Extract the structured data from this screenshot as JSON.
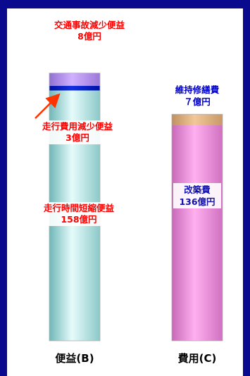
{
  "chart_data": {
    "type": "bar",
    "categories": [
      "便益(B)",
      "費用(C)"
    ],
    "unit": "億円",
    "stacks": [
      {
        "category": "便益(B)",
        "segments": [
          {
            "name": "走行時間短縮便益",
            "value": 158,
            "value_label": "158億円",
            "color": "#bde6e6"
          },
          {
            "name": "走行費用減少便益",
            "value": 3,
            "value_label": "3億円",
            "color": "#0018b8"
          },
          {
            "name": "交通事故減少便益",
            "value": 8,
            "value_label": "8億円",
            "color": "#b58ce8"
          }
        ]
      },
      {
        "category": "費用(C)",
        "segments": [
          {
            "name": "改築費",
            "value": 136,
            "value_label": "136億円",
            "color": "#e67ed4"
          },
          {
            "name": "維持修繕費",
            "value": 7,
            "value_label": "７億円",
            "color": "#d4a87a"
          }
        ]
      }
    ],
    "colors": {
      "frame": "#0a0a8e",
      "benefit_label": "#ff0000",
      "cost_label": "#0000cc",
      "cost_inner_label": "#1010b0",
      "arrow": "#ff3300"
    },
    "labels": {
      "accident": {
        "name": "交通事故減少便益",
        "value": "8億円"
      },
      "running_cost": {
        "name": "走行費用減少便益",
        "value": "3億円"
      },
      "travel_time": {
        "name": "走行時間短縮便益",
        "value": "158億円"
      },
      "maintenance": {
        "name": "維持修繕費",
        "value": "７億円"
      },
      "construction": {
        "name": "改築費",
        "value": "136億円"
      }
    }
  }
}
